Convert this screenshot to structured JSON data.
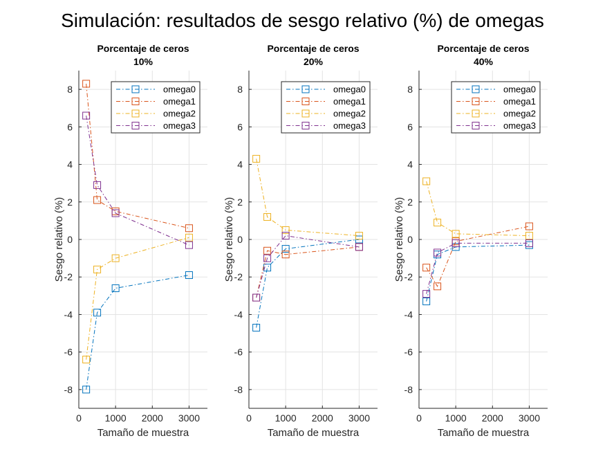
{
  "figure": {
    "title": "Simulación: resultados de sesgo relativo (%) de omegas"
  },
  "colors": {
    "omega0": "#0072BD",
    "omega1": "#D95319",
    "omega2": "#EDB120",
    "omega3": "#7E2F8E",
    "grid": "#e3e3e3",
    "axis": "#262626"
  },
  "chart_data": [
    {
      "type": "line",
      "title": "Porcentaje de ceros",
      "subtitle": "10%",
      "xlabel": "Tamaño de muestra",
      "ylabel": "Sesgo relativo (%)",
      "xlim": [
        0,
        3500
      ],
      "ylim": [
        -9,
        9
      ],
      "xticks": [
        0,
        1000,
        2000,
        3000
      ],
      "yticks": [
        -8,
        -6,
        -4,
        -2,
        0,
        2,
        4,
        6,
        8
      ],
      "grid": true,
      "legend": "top-right",
      "x": [
        200,
        500,
        1000,
        3000
      ],
      "series": [
        {
          "name": "omega0",
          "values": [
            -8.0,
            -3.9,
            -2.6,
            -1.9
          ]
        },
        {
          "name": "omega1",
          "values": [
            8.3,
            2.1,
            1.5,
            0.6
          ]
        },
        {
          "name": "omega2",
          "values": [
            -6.4,
            -1.6,
            -1.0,
            0.1
          ]
        },
        {
          "name": "omega3",
          "values": [
            6.6,
            2.9,
            1.4,
            -0.3
          ]
        }
      ]
    },
    {
      "type": "line",
      "title": "Porcentaje de ceros",
      "subtitle": "20%",
      "xlabel": "Tamaño de muestra",
      "ylabel": "Sesgo relativo (%)",
      "xlim": [
        0,
        3500
      ],
      "ylim": [
        -9,
        9
      ],
      "xticks": [
        0,
        1000,
        2000,
        3000
      ],
      "yticks": [
        -8,
        -6,
        -4,
        -2,
        0,
        2,
        4,
        6,
        8
      ],
      "grid": true,
      "legend": "top-right",
      "x": [
        200,
        500,
        1000,
        3000
      ],
      "series": [
        {
          "name": "omega0",
          "values": [
            -4.7,
            -1.5,
            -0.5,
            0.0
          ]
        },
        {
          "name": "omega1",
          "values": [
            -3.1,
            -0.6,
            -0.8,
            -0.4
          ]
        },
        {
          "name": "omega2",
          "values": [
            4.3,
            1.2,
            0.5,
            0.2
          ]
        },
        {
          "name": "omega3",
          "values": [
            -3.1,
            -1.0,
            0.2,
            -0.4
          ]
        }
      ]
    },
    {
      "type": "line",
      "title": "Porcentaje de ceros",
      "subtitle": "40%",
      "xlabel": "Tamaño de muestra",
      "ylabel": "Sesgo relativo (%)",
      "xlim": [
        0,
        3500
      ],
      "ylim": [
        -9,
        9
      ],
      "xticks": [
        0,
        1000,
        2000,
        3000
      ],
      "yticks": [
        -8,
        -6,
        -4,
        -2,
        0,
        2,
        4,
        6,
        8
      ],
      "grid": true,
      "legend": "top-right",
      "x": [
        200,
        500,
        1000,
        3000
      ],
      "series": [
        {
          "name": "omega0",
          "values": [
            -3.3,
            -0.8,
            -0.4,
            -0.3
          ]
        },
        {
          "name": "omega1",
          "values": [
            -1.5,
            -2.5,
            -0.1,
            0.7
          ]
        },
        {
          "name": "omega2",
          "values": [
            3.1,
            0.9,
            0.3,
            0.2
          ]
        },
        {
          "name": "omega3",
          "values": [
            -2.9,
            -0.7,
            -0.2,
            -0.2
          ]
        }
      ]
    }
  ]
}
